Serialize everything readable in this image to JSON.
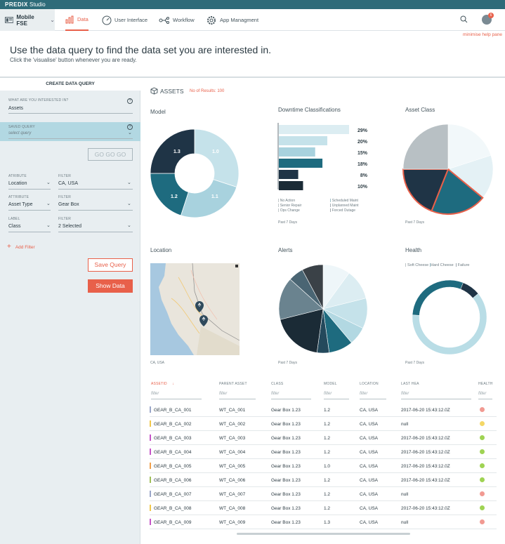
{
  "brand": {
    "name": "PREDIX",
    "product": "Studio"
  },
  "device": {
    "label": "Mobile FSE"
  },
  "nav": [
    {
      "label": "Data"
    },
    {
      "label": "User Interface"
    },
    {
      "label": "Workflow"
    },
    {
      "label": "App Managment"
    }
  ],
  "avatar_badge": "6",
  "minimise_help": "minimise help pane",
  "headline": "Use the data query to find the data set you are interested in.",
  "subline": "Click the 'visualise' button whenever you are ready.",
  "sidebar": {
    "title": "CREATE DATA QUERY",
    "interest_label": "WHAT ARE YOU INTERESTED IN?",
    "interest_value": "Assets",
    "saved_label": "SAVED QUERY",
    "saved_placeholder": "select query",
    "go_button": "GO GO GO",
    "filters": [
      {
        "attr_label": "ATRIBUTE",
        "attr_value": "Location",
        "filter_label": "FILTER",
        "filter_value": "CA, USA"
      },
      {
        "attr_label": "ATTRIBUTE",
        "attr_value": "Asset Type",
        "filter_label": "FILTER",
        "filter_value": "Gear Box"
      },
      {
        "attr_label": "LABEL",
        "attr_value": "Class",
        "filter_label": "FILTER",
        "filter_value": "2 Selected"
      }
    ],
    "add_filter": "Add Filter",
    "save_query": "Save Query",
    "show_data": "Show Data"
  },
  "assets": {
    "title": "ASSETS",
    "results": "No of Results: 100"
  },
  "panels": {
    "model": {
      "title": "Model",
      "labels": [
        "1.3",
        "1.0",
        "1.2",
        "1.1"
      ]
    },
    "downtime": {
      "title": "Downtime Classifications",
      "legend": [
        "No Action",
        "Scheduled Maint",
        "Senior Repair",
        "Unplanned Maint",
        "Ops Change",
        "Forced Outage"
      ],
      "caption": "Past 7 Days"
    },
    "asset_class": {
      "title": "Asset Class",
      "caption": "Past 7 Days"
    },
    "location": {
      "title": "Location",
      "caption": "CA, USA"
    },
    "alerts": {
      "title": "Alerts",
      "caption": "Past 7 Days"
    },
    "health": {
      "title": "Health",
      "legend": [
        "Soft Cheese",
        "Hard Cheese",
        "Failure"
      ],
      "caption": "Past 7 Days"
    }
  },
  "chart_data": [
    {
      "type": "pie",
      "title": "Model",
      "categories": [
        "1.0",
        "1.1",
        "1.2",
        "1.3"
      ],
      "values": [
        30,
        25,
        20,
        25
      ],
      "colors": [
        "#c5e2ea",
        "#a8d2de",
        "#1e6b7f",
        "#1f3446"
      ]
    },
    {
      "type": "bar",
      "title": "Downtime Classifications",
      "orientation": "horizontal",
      "values": [
        29,
        20,
        15,
        18,
        8,
        10
      ],
      "labels": [
        "29%",
        "20%",
        "15%",
        "18%",
        "8%",
        "10%"
      ],
      "colors": [
        "#dcedf2",
        "#c5e2ea",
        "#a8d2de",
        "#1e6b7f",
        "#1f3446",
        "#1b2b36"
      ]
    },
    {
      "type": "pie",
      "title": "Asset Class",
      "values": [
        20,
        16,
        20,
        19,
        25
      ],
      "colors": [
        "#f2f8fa",
        "#e4f1f5",
        "#1e6b7f",
        "#1f3446",
        "#b8c0c4"
      ]
    },
    {
      "type": "pie",
      "title": "Alerts",
      "values": [
        9,
        10,
        10,
        6,
        8,
        4,
        17,
        14,
        5,
        7
      ],
      "colors": [
        "#eef6f9",
        "#dcedf2",
        "#c5e2ea",
        "#b2d8e2",
        "#1e6b7f",
        "#24495c",
        "#1b2b36",
        "#6a838f",
        "#4a6573",
        "#3a4147"
      ]
    },
    {
      "type": "pie",
      "title": "Health",
      "categories": [
        "Soft Cheese",
        "Hard Cheese",
        "Failure"
      ],
      "values": [
        62,
        30,
        8
      ],
      "colors": [
        "#b9dde6",
        "#1e6b7f",
        "#1f3446"
      ]
    }
  ],
  "table": {
    "headers": [
      "ASSETID",
      "PARENT ASSET",
      "CLASS",
      "MODEL",
      "LOCATION",
      "LAST HEA",
      "HEALTH"
    ],
    "filter_placeholder": "filter",
    "rows": [
      {
        "id": "GEAR_B_CA_001",
        "parent": "WT_CA_001",
        "class": "Gear Box 1.23",
        "model": "1.2",
        "loc": "CA, USA",
        "last": "2017-06-20 15:43:12.0Z",
        "mark": "#9aa6c9",
        "health": "#f19a92"
      },
      {
        "id": "GEAR_B_CA_002",
        "parent": "WT_CA_002",
        "class": "Gear Box 1.23",
        "model": "1.2",
        "loc": "CA, USA",
        "last": "null",
        "mark": "#f1c84b",
        "health": "#f4d766"
      },
      {
        "id": "GEAR_B_CA_003",
        "parent": "WT_CA_003",
        "class": "Gear Box 1.23",
        "model": "1.2",
        "loc": "CA, USA",
        "last": "2017-06-20 15:43:12.0Z",
        "mark": "#c554c8",
        "health": "#9fd353"
      },
      {
        "id": "GEAR_B_CA_004",
        "parent": "WT_CA_004",
        "class": "Gear Box 1.23",
        "model": "1.2",
        "loc": "CA, USA",
        "last": "2017-06-20 15:43:12.0Z",
        "mark": "#c554c8",
        "health": "#9fd353"
      },
      {
        "id": "GEAR_B_CA_005",
        "parent": "WT_CA_005",
        "class": "Gear Box 1.23",
        "model": "1.0",
        "loc": "CA, USA",
        "last": "2017-06-20 15:43:12.0Z",
        "mark": "#f1a04b",
        "health": "#9fd353"
      },
      {
        "id": "GEAR_B_CA_006",
        "parent": "WT_CA_006",
        "class": "Gear Box 1.23",
        "model": "1.2",
        "loc": "CA, USA",
        "last": "2017-06-20 15:43:12.0Z",
        "mark": "#9fbf5a",
        "health": "#9fd353"
      },
      {
        "id": "GEAR_B_CA_007",
        "parent": "WT_CA_007",
        "class": "Gear Box 1.23",
        "model": "1.2",
        "loc": "CA, USA",
        "last": "null",
        "mark": "#9aa6c9",
        "health": "#f19a92"
      },
      {
        "id": "GEAR_B_CA_008",
        "parent": "WT_CA_008",
        "class": "Gear Box 1.23",
        "model": "1.2",
        "loc": "CA, USA",
        "last": "2017-06-20 15:43:12.0Z",
        "mark": "#f1c84b",
        "health": "#9fd353"
      },
      {
        "id": "GEAR_B_CA_009",
        "parent": "WT_CA_009",
        "class": "Gear Box 1.23",
        "model": "1.3",
        "loc": "CA, USA",
        "last": "null",
        "mark": "#c554c8",
        "health": "#f19a92"
      }
    ]
  }
}
